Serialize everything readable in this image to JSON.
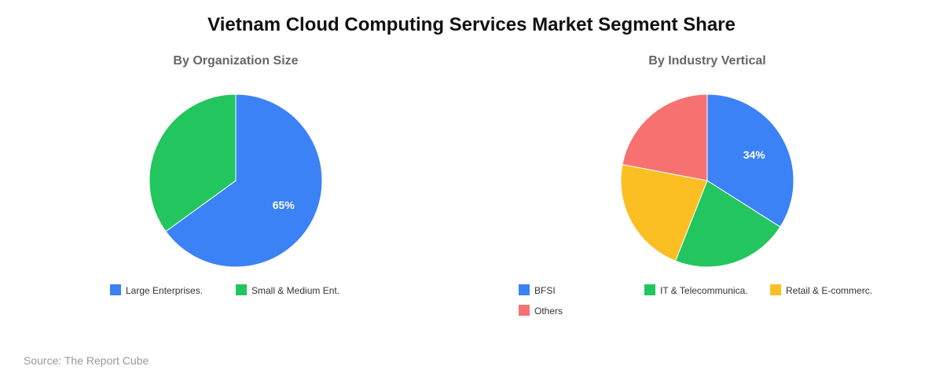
{
  "title": "Vietnam Cloud Computing Services Market Segment Share",
  "source": "Source: The Report Cube",
  "chart_data": [
    {
      "type": "pie",
      "title": "By Organization Size",
      "slices": [
        {
          "label": "Large Enterprises.",
          "value": 65,
          "color": "#3b82f6",
          "data_label": "65%"
        },
        {
          "label": "Small & Medium Ent.",
          "value": 35,
          "color": "#22c55e",
          "data_label": ""
        }
      ],
      "legend": "bottom"
    },
    {
      "type": "pie",
      "title": "By Industry Vertical",
      "slices": [
        {
          "label": "BFSI",
          "value": 34,
          "color": "#3b82f6",
          "data_label": "34%"
        },
        {
          "label": "IT & Telecommunica.",
          "value": 22,
          "color": "#22c55e",
          "data_label": ""
        },
        {
          "label": "Retail & E-commerc.",
          "value": 22,
          "color": "#fbbf24",
          "data_label": ""
        },
        {
          "label": "Others",
          "value": 22,
          "color": "#f87171",
          "data_label": ""
        }
      ],
      "legend": "bottom"
    }
  ]
}
